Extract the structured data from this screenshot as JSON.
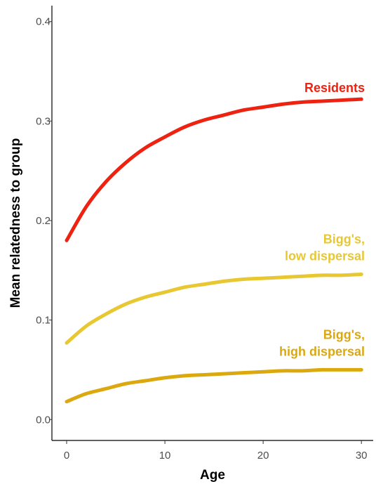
{
  "chart_data": {
    "type": "line",
    "title": "",
    "xlabel": "Age",
    "ylabel": "Mean relatedness to group",
    "xlim": [
      -1.5,
      31.2
    ],
    "ylim": [
      -0.021,
      0.416
    ],
    "x_ticks": [
      0,
      10,
      20,
      30
    ],
    "y_ticks": [
      0.0,
      0.1,
      0.2,
      0.3,
      0.4
    ],
    "x_tick_labels": [
      "0",
      "10",
      "20",
      "30"
    ],
    "y_tick_labels": [
      "0.0",
      "0.1",
      "0.2",
      "0.3",
      "0.4"
    ],
    "grid": false,
    "legend": "none (series labelled directly on the plot)",
    "x": [
      0,
      2,
      4,
      6,
      8,
      10,
      12,
      14,
      16,
      18,
      20,
      22,
      24,
      26,
      28,
      30
    ],
    "series": [
      {
        "name": "Residents",
        "label_lines": [
          "Residents"
        ],
        "color": "#ee2211",
        "values": [
          0.18,
          0.214,
          0.239,
          0.258,
          0.273,
          0.284,
          0.294,
          0.301,
          0.306,
          0.311,
          0.314,
          0.317,
          0.319,
          0.32,
          0.321,
          0.322
        ]
      },
      {
        "name": "Bigg's, low dispersal",
        "label_lines": [
          "Bigg's,",
          "low dispersal"
        ],
        "color": "#e8c832",
        "values": [
          0.077,
          0.094,
          0.106,
          0.116,
          0.123,
          0.128,
          0.133,
          0.136,
          0.139,
          0.141,
          0.142,
          0.143,
          0.144,
          0.145,
          0.145,
          0.146
        ]
      },
      {
        "name": "Bigg's, high dispersal",
        "label_lines": [
          "Bigg's,",
          "high dispersal"
        ],
        "color": "#dba80e",
        "values": [
          0.018,
          0.026,
          0.031,
          0.036,
          0.039,
          0.042,
          0.044,
          0.045,
          0.046,
          0.047,
          0.048,
          0.049,
          0.049,
          0.05,
          0.05,
          0.05
        ]
      }
    ]
  }
}
